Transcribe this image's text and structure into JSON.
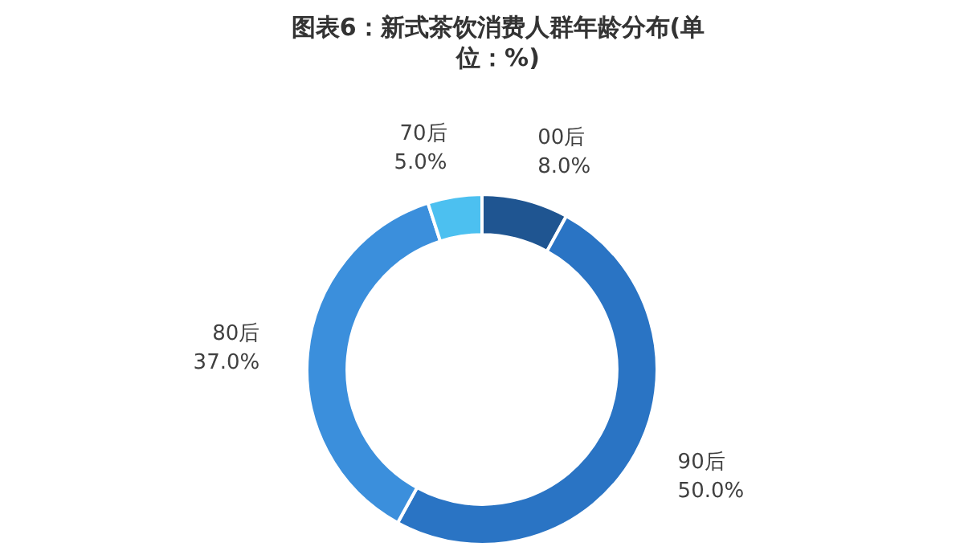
{
  "chart_data": {
    "type": "donut",
    "title": "图表6：新式茶饮消费人群年龄分布(单位：%)",
    "categories": [
      "00后",
      "90后",
      "80后",
      "70后"
    ],
    "values": [
      8.0,
      50.0,
      37.0,
      5.0
    ],
    "value_labels": [
      "8.0%",
      "50.0%",
      "37.0%",
      "5.0%"
    ],
    "colors": [
      "#1f5591",
      "#2a74c4",
      "#3b8fdc",
      "#4cc0f0"
    ],
    "legend": false
  }
}
